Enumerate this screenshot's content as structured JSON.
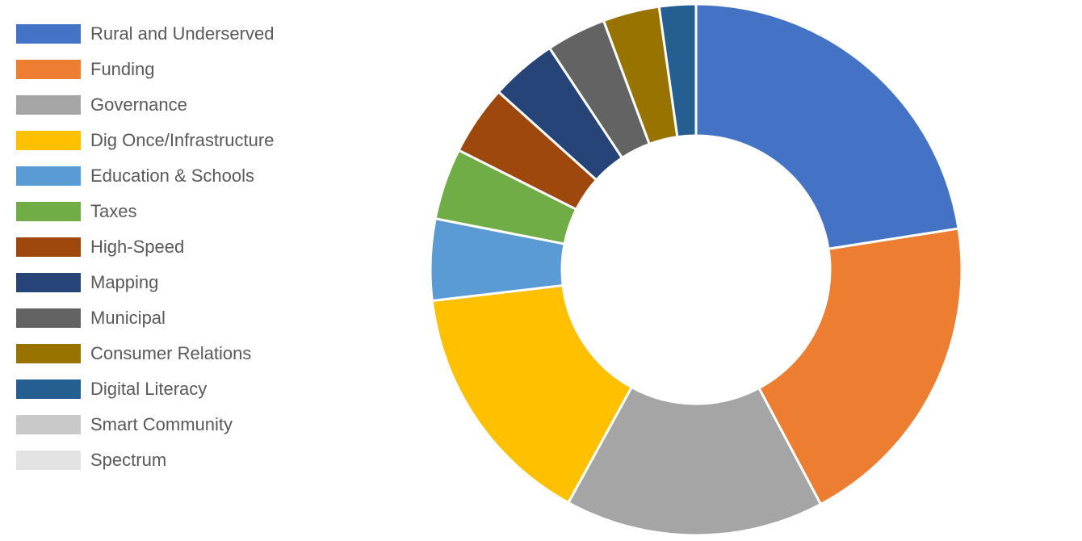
{
  "chart_data": {
    "type": "pie",
    "subtype": "doughnut",
    "title": "",
    "legend_position": "left",
    "categories": [
      "Rural and Underserved",
      "Funding",
      "Governance",
      "Dig Once/Infrastructure",
      "Education & Schools",
      "Taxes",
      "High-Speed",
      "Mapping",
      "Municipal",
      "Consumer Relations",
      "Digital Literacy",
      "Smart Community",
      "Spectrum"
    ],
    "values": [
      22.3,
      19.5,
      15.6,
      15.0,
      4.9,
      4.3,
      4.2,
      4.0,
      3.6,
      3.4,
      2.2,
      0.0,
      0.0
    ],
    "colors": [
      "#4472C4",
      "#ED7D31",
      "#A5A5A5",
      "#FFC000",
      "#5B9BD5",
      "#70AD47",
      "#9E480E",
      "#264478",
      "#636363",
      "#997300",
      "#255E91",
      "#C9C9C9",
      "#E3E3E3"
    ]
  }
}
